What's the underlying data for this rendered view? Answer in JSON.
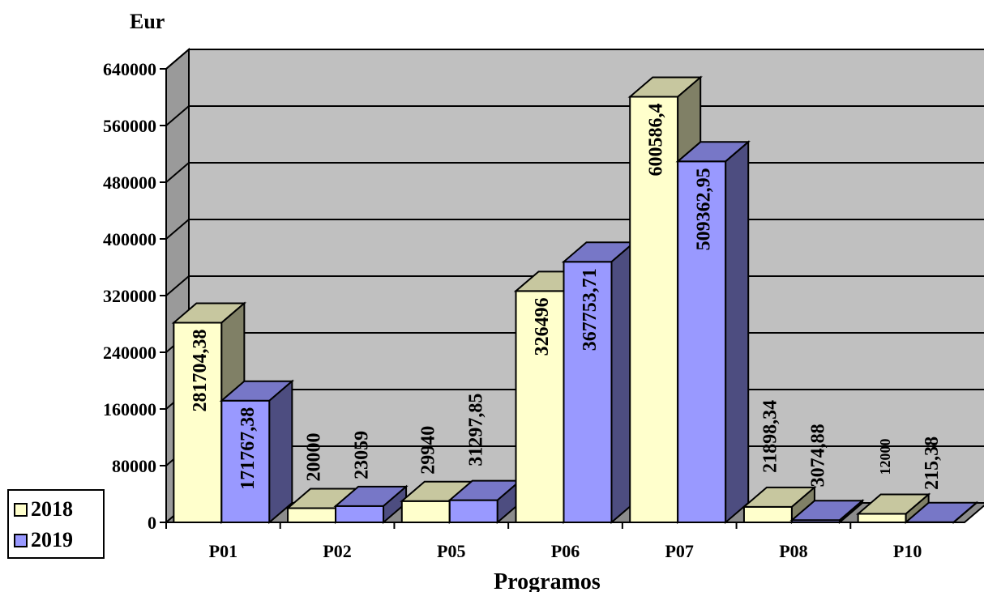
{
  "chart_data": {
    "type": "bar",
    "subtype": "3d-clustered-column",
    "ylabel": "Eur",
    "xlabel": "Programos",
    "categories": [
      "P01",
      "P02",
      "P05",
      "P06",
      "P07",
      "P08",
      "P10"
    ],
    "series": [
      {
        "name": "2018",
        "color": "#ffffcc",
        "values": [
          281704.38,
          20000,
          29940,
          326496,
          600586.4,
          21898.34,
          12000
        ],
        "labels": [
          "281704,38",
          "20000",
          "29940",
          "326496",
          "600586,4",
          "21898,34",
          "12000"
        ]
      },
      {
        "name": "2019",
        "color": "#9999ff",
        "values": [
          171767.38,
          23059,
          31297.85,
          367753.71,
          509362.95,
          3074.88,
          215.38
        ],
        "labels": [
          "171767,38",
          "23059",
          "31297,85",
          "367753,71",
          "509362,95",
          "3074,88",
          "215,38"
        ]
      }
    ],
    "ylim": [
      0,
      640000
    ],
    "yticks": [
      "0",
      "80000",
      "160000",
      "240000",
      "320000",
      "400000",
      "480000",
      "560000",
      "640000"
    ],
    "grid": true,
    "legend_position": "bottom-left",
    "wall_color": "#c0c0c0"
  }
}
